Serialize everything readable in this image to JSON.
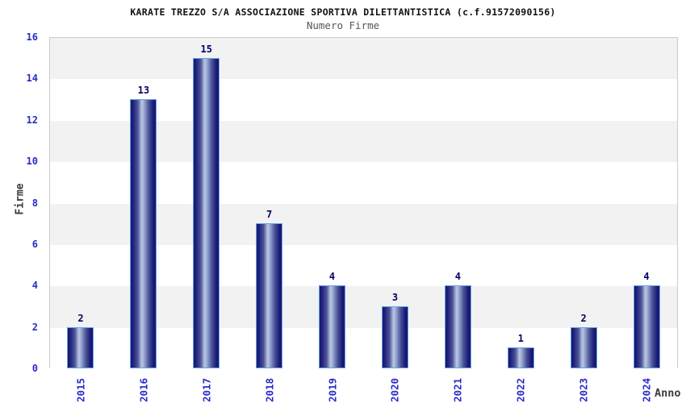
{
  "chart_data": {
    "type": "bar",
    "title": "KARATE TREZZO S/A ASSOCIAZIONE SPORTIVA DILETTANTISTICA (c.f.91572090156)",
    "subtitle": "Numero Firme",
    "categories": [
      "2015",
      "2016",
      "2017",
      "2018",
      "2019",
      "2020",
      "2021",
      "2022",
      "2023",
      "2024"
    ],
    "values": [
      2,
      13,
      15,
      7,
      4,
      3,
      4,
      1,
      2,
      4
    ],
    "xlabel": "Anno",
    "ylabel": "Firme",
    "ylim": [
      0,
      16
    ],
    "ytick_step": 2,
    "yticks": [
      0,
      2,
      4,
      6,
      8,
      10,
      12,
      14,
      16
    ],
    "legend": "none",
    "grid": "alternating-horizontal-bands",
    "x_tick_rotation": 90,
    "colors": {
      "bar_dark": "#16166f",
      "bar_mid": "#4a5498",
      "bar_light": "#bcc7e4",
      "bar_border": "#63a3e8",
      "tick_label": "#2a2acc",
      "value_label": "#000066",
      "axis_title": "#3b3b3b",
      "band_gray": "#f2f2f2",
      "band_white": "#ffffff",
      "plot_border": "#cccccc",
      "title_color": "#111111",
      "subtitle_color": "#55555e"
    }
  }
}
